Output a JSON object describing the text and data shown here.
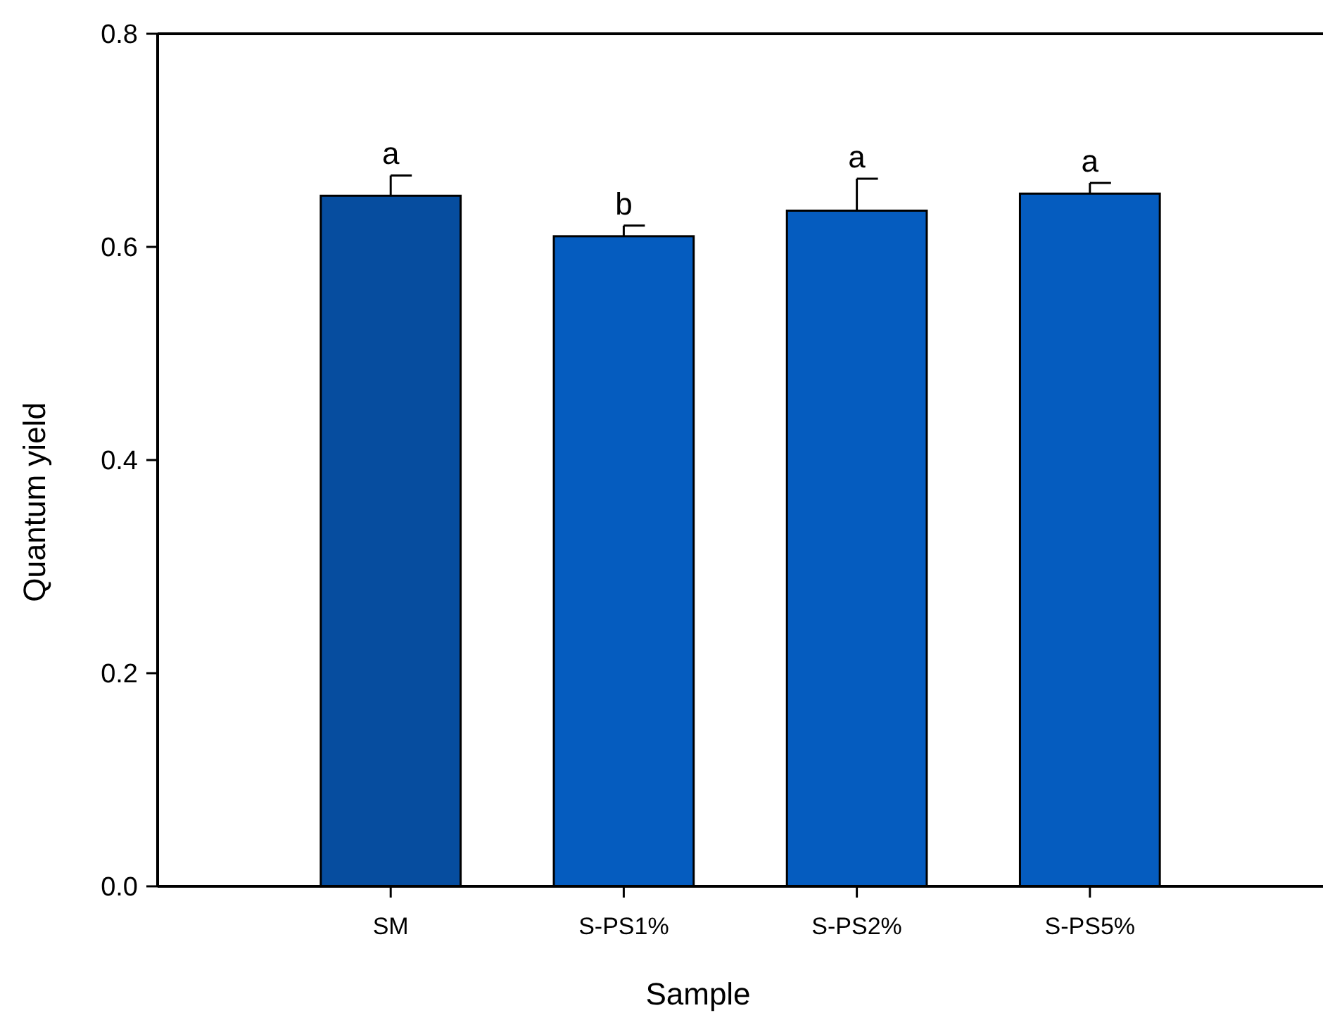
{
  "chart_data": {
    "type": "bar",
    "xlabel": "Sample",
    "ylabel": "Quantum yield",
    "categories": [
      "SM",
      "S-PS1%",
      "S-PS2%",
      "S-PS5%"
    ],
    "values": [
      0.648,
      0.61,
      0.634,
      0.65
    ],
    "errors": [
      [
        0.648,
        0.667
      ],
      [
        0.61,
        0.62
      ],
      [
        0.634,
        0.664
      ],
      [
        0.65,
        0.66
      ]
    ],
    "colors": [
      "#064d9f",
      "#055cbf",
      "#055cbf",
      "#055cbf"
    ],
    "ylim": [
      0,
      0.8
    ],
    "yticks": [
      {
        "value": 0,
        "label": "0.0"
      },
      {
        "value": 0.2,
        "label": "0.2"
      },
      {
        "value": 0.4,
        "label": "0.4"
      },
      {
        "value": 0.6,
        "label": "0.6"
      },
      {
        "value": 0.8,
        "label": "0.8"
      }
    ],
    "annotations": [
      "a",
      "b",
      "a",
      "a"
    ]
  }
}
